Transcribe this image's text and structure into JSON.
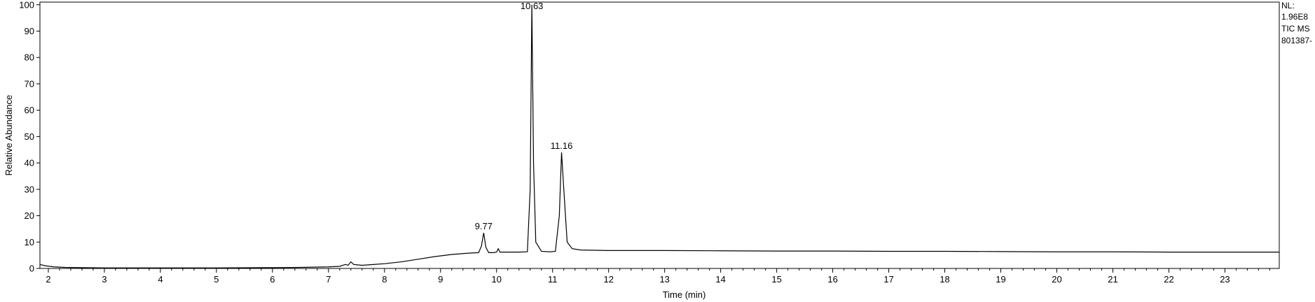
{
  "chart_data": {
    "type": "line",
    "xlabel": "Time (min)",
    "ylabel": "Relative Abundance",
    "xlim": [
      1.85,
      23.97
    ],
    "ylim": [
      0,
      101
    ],
    "x_ticks": [
      2,
      3,
      4,
      5,
      6,
      7,
      8,
      9,
      10,
      11,
      12,
      13,
      14,
      15,
      16,
      17,
      18,
      19,
      20,
      21,
      22,
      23
    ],
    "x_tick_labels": [
      "2",
      "3",
      "4",
      "5",
      "6",
      "7",
      "8",
      "9",
      "10",
      "11",
      "12",
      "13",
      "14",
      "15",
      "16",
      "17",
      "18",
      "19",
      "20",
      "21",
      "22",
      "23"
    ],
    "y_ticks": [
      0,
      10,
      20,
      30,
      40,
      50,
      60,
      70,
      80,
      90,
      100
    ],
    "y_tick_labels": [
      "0",
      "10",
      "20",
      "30",
      "40",
      "50",
      "60",
      "70",
      "80",
      "90",
      "100"
    ],
    "info_lines": [
      "NL:",
      "1.96E8",
      "TIC  MS",
      "801387-"
    ],
    "peaks": [
      {
        "label": "9.77",
        "x": 9.77,
        "y": 13.5
      },
      {
        "label": "10.63",
        "x": 10.63,
        "y": 100
      },
      {
        "label": "11.16",
        "x": 11.16,
        "y": 44
      }
    ],
    "series": [
      {
        "x": [
          1.85,
          1.95,
          2.1,
          2.3,
          2.6,
          3.0,
          4.0,
          5.0,
          6.0,
          6.5,
          7.0,
          7.2,
          7.3,
          7.35,
          7.4,
          7.45,
          7.5,
          7.6,
          7.8,
          8.0,
          8.3,
          8.6,
          8.9,
          9.2,
          9.5,
          9.68,
          9.73,
          9.77,
          9.81,
          9.86,
          9.95,
          10.0,
          10.03,
          10.06,
          10.2,
          10.4,
          10.55,
          10.6,
          10.63,
          10.66,
          10.7,
          10.8,
          10.95,
          11.05,
          11.12,
          11.16,
          11.2,
          11.26,
          11.35,
          11.5,
          12.0,
          13.0,
          14.0,
          15.0,
          16.0,
          17.0,
          18.0,
          19.0,
          20.0,
          21.0,
          22.0,
          23.0,
          23.97
        ],
        "y": [
          1.5,
          1.0,
          0.6,
          0.4,
          0.3,
          0.2,
          0.2,
          0.2,
          0.3,
          0.4,
          0.6,
          0.8,
          1.5,
          1.2,
          2.5,
          1.5,
          1.4,
          1.2,
          1.5,
          1.8,
          2.5,
          3.5,
          4.5,
          5.3,
          5.8,
          6.0,
          8.5,
          13.5,
          8.0,
          6.0,
          6.0,
          6.2,
          7.5,
          6.2,
          6.2,
          6.2,
          6.3,
          30.0,
          100.0,
          40.0,
          10.0,
          6.5,
          6.3,
          6.5,
          20.0,
          44.0,
          30.0,
          10.0,
          7.5,
          7.0,
          6.8,
          6.8,
          6.7,
          6.6,
          6.6,
          6.5,
          6.5,
          6.4,
          6.3,
          6.3,
          6.2,
          6.2,
          6.2
        ]
      }
    ]
  }
}
